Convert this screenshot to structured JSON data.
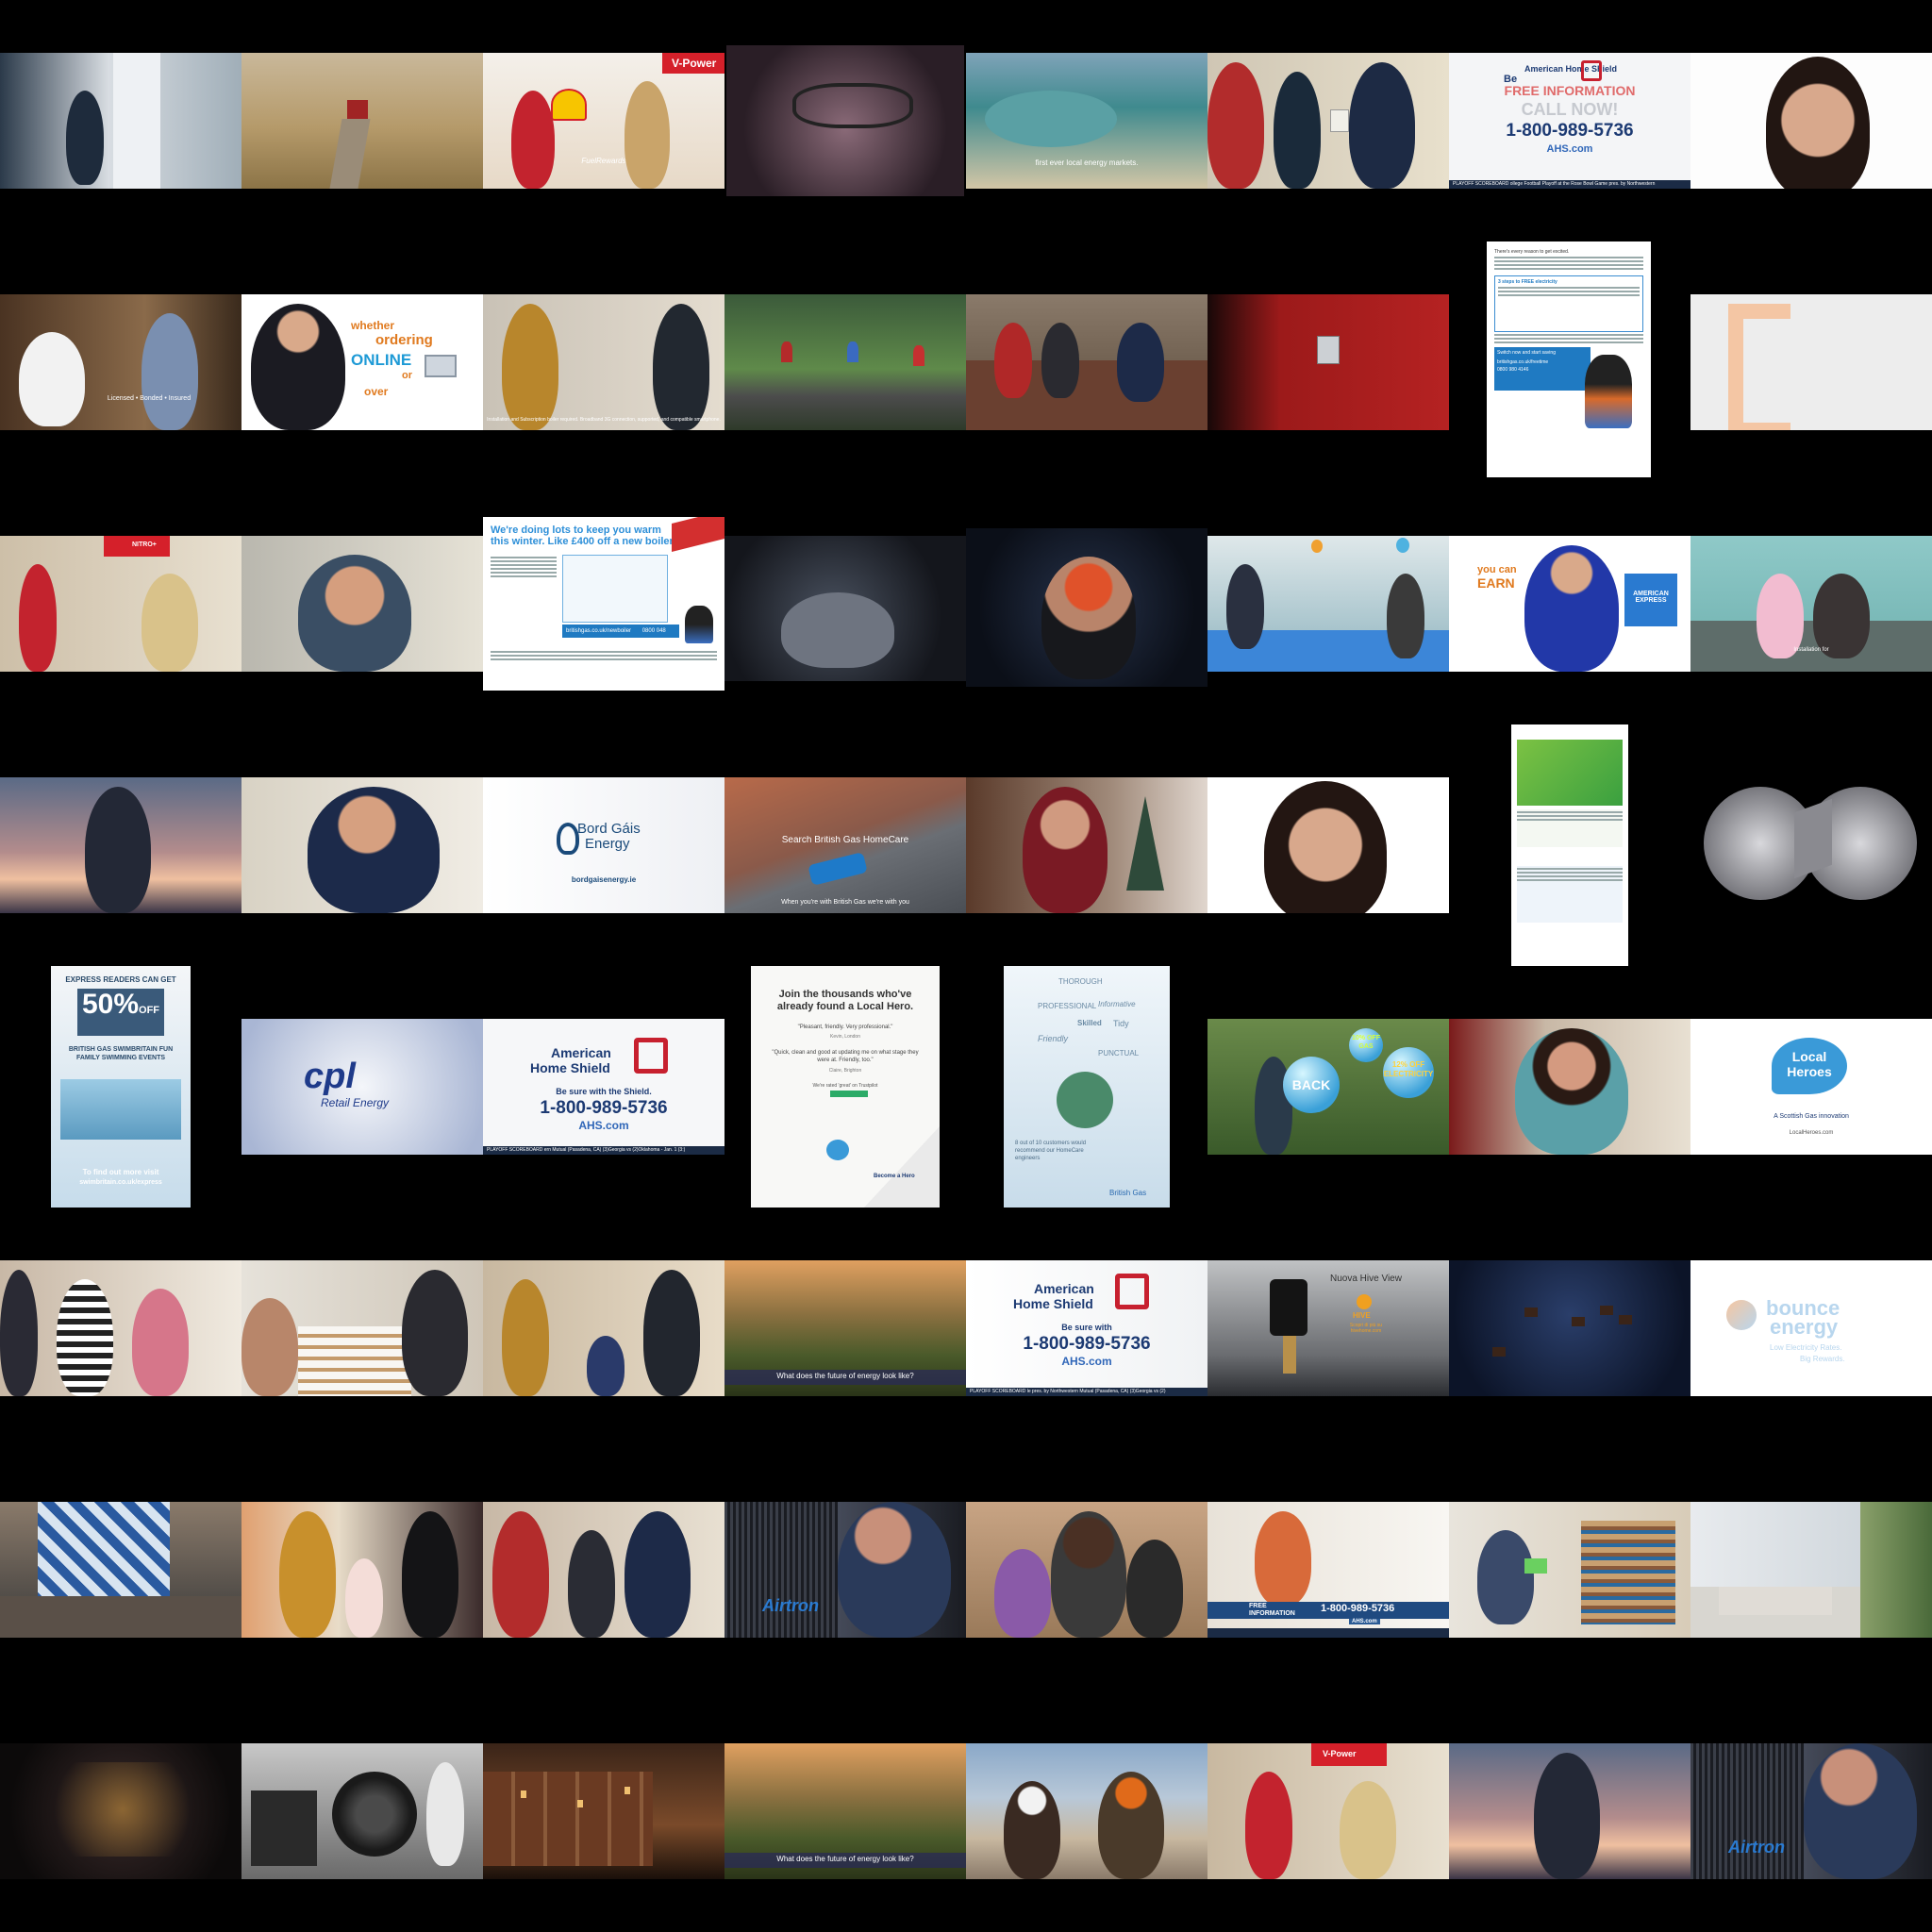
{
  "grid": {
    "rows": 8,
    "cols": 8,
    "background": "#000000"
  },
  "thumbs": {
    "fuel_rewards": "FuelRewards",
    "energy_markets": "first ever local energy markets.",
    "ahs_call": {
      "title": "American Home Shield",
      "be": "Be",
      "free_info": "FREE INFORMATION",
      "call_now": "CALL NOW!",
      "phone": "1-800-989-5736",
      "url": "AHS.com",
      "ticker": "PLAYOFF  SCOREBOARD  ollege Football Playoff at the Rose Bowl Game pres. by Northwestern"
    },
    "licensed": "Licensed • Bonded • Insured",
    "online": {
      "whether": "whether",
      "ordering": "ordering",
      "online": "ONLINE",
      "or": "or",
      "over": "over"
    },
    "installation_note": "Installation and Subscription boiler required. Broadband 3G connection, supported, and compatible smartphone.",
    "free_time": {
      "intro": "There's every reason to get excited.",
      "steps_title": "3 steps to FREE electricity",
      "switch": "Switch now and start saving",
      "url": "britishgas.co.uk/freetime",
      "phone": "0800 980 4146"
    },
    "boiler": {
      "headline": "We're doing lots to keep you warm this winter. Like £400 off a new boiler",
      "url": "britishgas.co.uk/newboiler",
      "phone": "0800 048 0202"
    },
    "amex": {
      "you_can": "you can",
      "earn": "EARN",
      "logo_top": "AMERICAN",
      "logo_bottom": "EXPRESS"
    },
    "installation_for": "Installation for",
    "bord_gais": {
      "line1": "Bord Gáis",
      "line2": "Energy",
      "url": "bordgaisenergy.ie"
    },
    "homecare": {
      "search": "Search British Gas HomeCare",
      "tagline": "When you're with British Gas we're with you"
    },
    "express": {
      "readers": "EXPRESS READERS CAN GET",
      "offer": "50%",
      "off": "OFF",
      "event": "BRITISH GAS SWIMBRITAIN FUN FAMILY SWIMMING EVENTS",
      "more": "To find out more visit",
      "url": "swimbritain.co.uk/express"
    },
    "cpl": {
      "logo": "cpl",
      "sub": "Retail Energy"
    },
    "ahs_shield": {
      "title1": "American",
      "title2": "Home Shield",
      "be_sure": "Be sure with the Shield.",
      "phone": "1-800-989-5736",
      "url": "AHS.com",
      "ticker": "PLAYOFF  SCOREBOARD  ern Mutual (Pasadena, CA)  (3)Georgia vs (2)Oklahoma - Jan. 1 (3:)"
    },
    "local_hero_doc": {
      "heading": "Join the thousands who've already found a Local Hero.",
      "quote1": "\"Pleasant, friendly. Very professional.\"",
      "who1": "Kevin, London",
      "quote2": "\"Quick, clean and good at updating me on what stage they were at. Friendly, too.\"",
      "who2": "Claire, Brighton",
      "rated": "We're rated 'great' on Trustpilot",
      "become": "Become a Hero"
    },
    "bg_words": {
      "words": [
        "THOROUGH",
        "PROFESSIONAL",
        "Informative",
        "Skilled",
        "Tidy",
        "Friendly",
        "PUNCTUAL"
      ],
      "stat": "8 out of 10 customers would recommend our HomeCare engineers",
      "brand": "British Gas"
    },
    "cash_back": {
      "back": "BACK",
      "offer1": "10% OFF GAS",
      "offer2": "12% OFF ELECTRICITY"
    },
    "local_heroes": {
      "logo1": "Local",
      "logo2": "Heroes",
      "sub": "A Scottish Gas innovation",
      "url": "LocalHeroes.com"
    },
    "future_energy": "What does the future of energy look like?",
    "ahs_blue": {
      "title1": "American",
      "title2": "Home Shield",
      "be_sure": "Be sure with",
      "phone": "1-800-989-5736",
      "url": "AHS.com",
      "ticker": "PLAYOFF  SCOREBOARD  le pres. by Northwestern Mutual (Pasadena, CA)  (3)Georgia vs (2)"
    },
    "hive": {
      "title": "Nuova Hive View",
      "brand": "HIVE",
      "note": "Scopri di più su hivehome.com"
    },
    "bounce": {
      "line1": "bounce",
      "line2": "energy",
      "tag1": "Low Electricity Rates.",
      "tag2": "Big Rewards."
    },
    "airtron": "Airtron",
    "ahs_free": {
      "free": "FREE",
      "info": "INFORMATION",
      "phone": "1-800-989-5736",
      "url": "AHS.com"
    },
    "vpower": "V-Power",
    "nitro": "NITRO+"
  }
}
